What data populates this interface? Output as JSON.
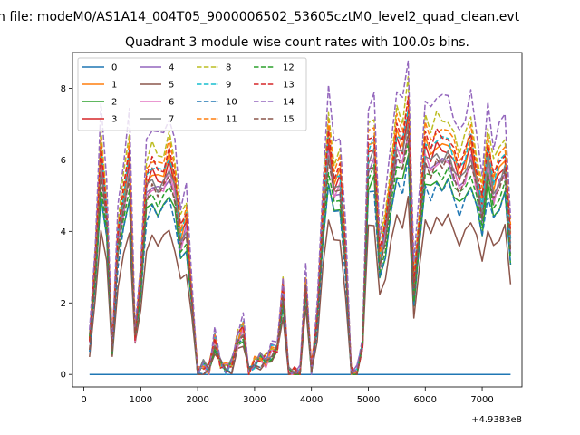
{
  "chart_data": {
    "type": "line",
    "suptitle": "n file: modeM0/AS1A14_004T05_9000006502_53605cztM0_level2_quad_clean.evt",
    "title": "Quadrant 3 module wise count rates with 100.0s bins.",
    "xlabel": "",
    "ylabel": "",
    "x_offset_label": "+4.9383e8",
    "xlim": [
      -200,
      7700
    ],
    "ylim": [
      -0.35,
      9.0
    ],
    "xticks": [
      0,
      1000,
      2000,
      3000,
      4000,
      5000,
      6000,
      7000
    ],
    "xtick_labels": [
      "0",
      "1000",
      "2000",
      "3000",
      "4000",
      "5000",
      "6000",
      "7000"
    ],
    "yticks": [
      0,
      2,
      4,
      6,
      8
    ],
    "ytick_labels": [
      "0",
      "2",
      "4",
      "6",
      "8"
    ],
    "grid": false,
    "legend_placement": "top-left",
    "x": [
      100,
      200,
      300,
      400,
      500,
      600,
      700,
      800,
      900,
      1000,
      1100,
      1200,
      1300,
      1400,
      1500,
      1600,
      1700,
      1800,
      1900,
      2000,
      2100,
      2200,
      2300,
      2400,
      2500,
      2600,
      2700,
      2800,
      2900,
      3000,
      3100,
      3200,
      3300,
      3400,
      3500,
      3600,
      3700,
      3800,
      3900,
      4000,
      4100,
      4200,
      4300,
      4400,
      4500,
      4600,
      4700,
      4800,
      4900,
      5000,
      5100,
      5200,
      5300,
      5400,
      5500,
      5600,
      5700,
      5800,
      5900,
      6000,
      6100,
      6200,
      6300,
      6400,
      6500,
      6600,
      6700,
      6800,
      6900,
      7000,
      7100,
      7200,
      7300,
      7400,
      7500
    ],
    "base_profile": [
      0.9,
      2.8,
      5.7,
      4.2,
      0.7,
      3.6,
      4.6,
      5.6,
      1.0,
      2.5,
      5.0,
      5.3,
      5.1,
      5.2,
      5.6,
      5.0,
      3.6,
      4.0,
      2.0,
      0.05,
      0.2,
      0.1,
      0.9,
      0.3,
      0.15,
      0.25,
      0.9,
      1.2,
      0.05,
      0.3,
      0.4,
      0.35,
      0.6,
      0.7,
      2.2,
      0.0,
      0.0,
      0.0,
      2.4,
      0.1,
      1.5,
      4.1,
      6.1,
      5.0,
      5.2,
      3.2,
      0.0,
      0.0,
      0.8,
      5.8,
      6.0,
      3.0,
      3.8,
      5.0,
      6.2,
      5.9,
      6.8,
      2.3,
      4.0,
      6.0,
      5.7,
      6.0,
      5.9,
      6.0,
      5.6,
      5.2,
      5.5,
      6.0,
      5.2,
      4.4,
      5.8,
      4.9,
      5.3,
      5.6,
      3.5
    ],
    "series": [
      {
        "name": "0",
        "color": "#1f77b4",
        "dash": "solid",
        "scale": 0.0,
        "offset": 0.0
      },
      {
        "name": "1",
        "color": "#ff7f0e",
        "dash": "solid",
        "scale": 1.08,
        "offset": 0.0
      },
      {
        "name": "2",
        "color": "#2ca02c",
        "dash": "solid",
        "scale": 0.9,
        "offset": 0.0
      },
      {
        "name": "3",
        "color": "#d62728",
        "dash": "solid",
        "scale": 1.05,
        "offset": 0.05
      },
      {
        "name": "4",
        "color": "#9467bd",
        "dash": "solid",
        "scale": 0.98,
        "offset": 0.1
      },
      {
        "name": "5",
        "color": "#8c564b",
        "dash": "solid",
        "scale": 0.72,
        "offset": 0.0
      },
      {
        "name": "6",
        "color": "#e377c2",
        "dash": "solid",
        "scale": 1.0,
        "offset": 0.0
      },
      {
        "name": "7",
        "color": "#7f7f7f",
        "dash": "solid",
        "scale": 1.02,
        "offset": 0.05
      },
      {
        "name": "8",
        "color": "#bcbd22",
        "dash": "dashed",
        "scale": 1.2,
        "offset": 0.0
      },
      {
        "name": "9",
        "color": "#17becf",
        "dash": "dashed",
        "scale": 1.1,
        "offset": 0.0
      },
      {
        "name": "10",
        "color": "#1f77b4",
        "dash": "dashed",
        "scale": 0.88,
        "offset": 0.0
      },
      {
        "name": "11",
        "color": "#ff7f0e",
        "dash": "dashed",
        "scale": 1.15,
        "offset": 0.0
      },
      {
        "name": "12",
        "color": "#2ca02c",
        "dash": "dashed",
        "scale": 0.95,
        "offset": 0.0
      },
      {
        "name": "13",
        "color": "#d62728",
        "dash": "dashed",
        "scale": 1.12,
        "offset": 0.0
      },
      {
        "name": "14",
        "color": "#9467bd",
        "dash": "dashed",
        "scale": 1.3,
        "offset": 0.0
      },
      {
        "name": "15",
        "color": "#8c564b",
        "dash": "dashed",
        "scale": 1.0,
        "offset": -0.05
      }
    ]
  }
}
